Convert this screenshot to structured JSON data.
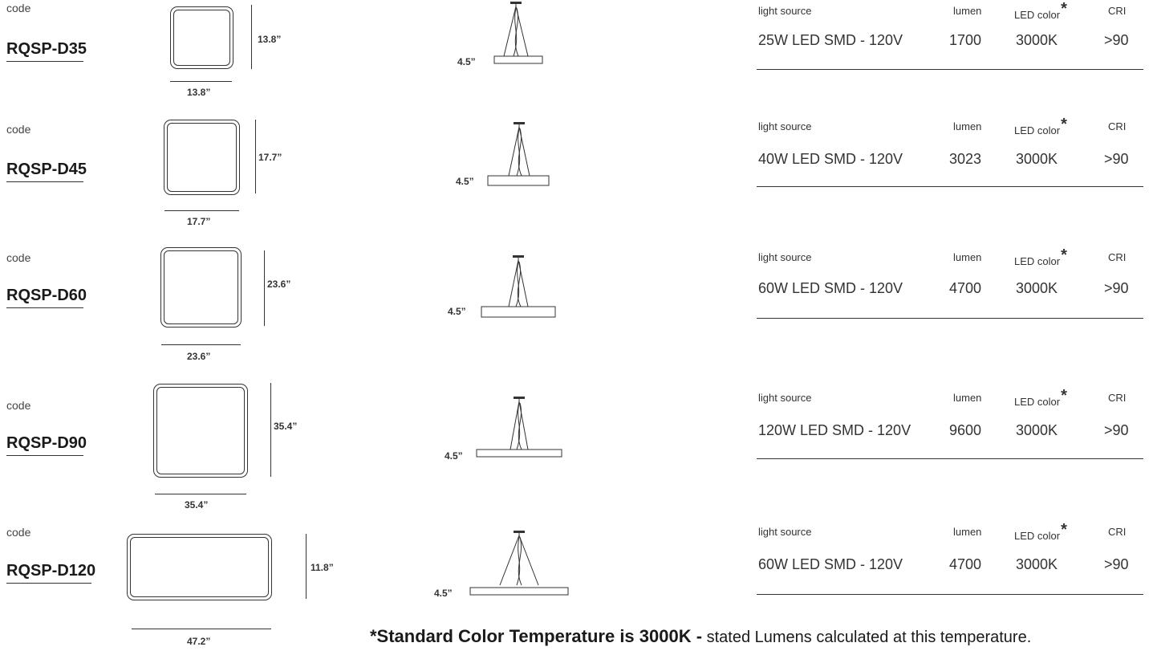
{
  "rows": [
    {
      "code_label": "code",
      "code": "RQSP-D35",
      "width_dim": "13.8”",
      "height_dim": "13.8”",
      "pendant_height": "4.5”",
      "spec_headers": {
        "light_source": "light source",
        "lumen": "lumen",
        "led_color": "LED color",
        "cri": "CRI"
      },
      "spec_values": {
        "light_source": "25W LED SMD - 120V",
        "lumen": "1700",
        "led_color": "3000K",
        "cri": ">90"
      }
    },
    {
      "code_label": "code",
      "code": "RQSP-D45",
      "width_dim": "17.7”",
      "height_dim": "17.7”",
      "pendant_height": "4.5”",
      "spec_headers": {
        "light_source": "light source",
        "lumen": "lumen",
        "led_color": "LED color",
        "cri": "CRI"
      },
      "spec_values": {
        "light_source": "40W LED SMD - 120V",
        "lumen": "3023",
        "led_color": "3000K",
        "cri": ">90"
      }
    },
    {
      "code_label": "code",
      "code": "RQSP-D60",
      "width_dim": "23.6”",
      "height_dim": "23.6”",
      "pendant_height": "4.5”",
      "spec_headers": {
        "light_source": "light source",
        "lumen": "lumen",
        "led_color": "LED color",
        "cri": "CRI"
      },
      "spec_values": {
        "light_source": "60W LED SMD - 120V",
        "lumen": "4700",
        "led_color": "3000K",
        "cri": ">90"
      }
    },
    {
      "code_label": "code",
      "code": "RQSP-D90",
      "width_dim": "35.4”",
      "height_dim": "35.4”",
      "pendant_height": "4.5”",
      "spec_headers": {
        "light_source": "light source",
        "lumen": "lumen",
        "led_color": "LED color",
        "cri": "CRI"
      },
      "spec_values": {
        "light_source": "120W LED SMD - 120V",
        "lumen": "9600",
        "led_color": "3000K",
        "cri": ">90"
      }
    },
    {
      "code_label": "code",
      "code": "RQSP-D120",
      "width_dim": "47.2”",
      "height_dim": "11.8”",
      "pendant_height": "4.5”",
      "spec_headers": {
        "light_source": "light source",
        "lumen": "lumen",
        "led_color": "LED color",
        "cri": "CRI"
      },
      "spec_values": {
        "light_source": "60W LED SMD - 120V",
        "lumen": "4700",
        "led_color": "3000K",
        "cri": ">90"
      }
    }
  ],
  "asterisk": "*",
  "footer": {
    "bold_part": "*Standard Color Temperature is 3000K -",
    "normal_part": " stated Lumens calculated at this temperature."
  }
}
